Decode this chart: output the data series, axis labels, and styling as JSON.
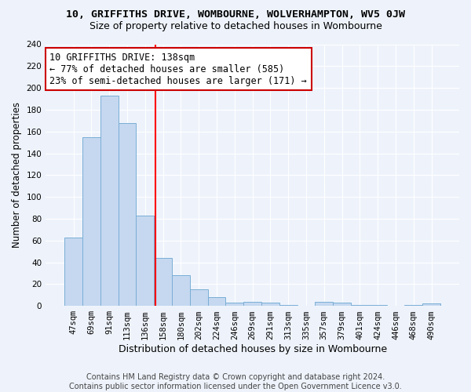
{
  "title1": "10, GRIFFITHS DRIVE, WOMBOURNE, WOLVERHAMPTON, WV5 0JW",
  "title2": "Size of property relative to detached houses in Wombourne",
  "xlabel": "Distribution of detached houses by size in Wombourne",
  "ylabel": "Number of detached properties",
  "categories": [
    "47sqm",
    "69sqm",
    "91sqm",
    "113sqm",
    "136sqm",
    "158sqm",
    "180sqm",
    "202sqm",
    "224sqm",
    "246sqm",
    "269sqm",
    "291sqm",
    "313sqm",
    "335sqm",
    "357sqm",
    "379sqm",
    "401sqm",
    "424sqm",
    "446sqm",
    "468sqm",
    "490sqm"
  ],
  "values": [
    63,
    155,
    193,
    168,
    83,
    44,
    28,
    15,
    8,
    3,
    4,
    3,
    1,
    0,
    4,
    3,
    1,
    1,
    0,
    1,
    2
  ],
  "bar_color": "#c5d8f0",
  "bar_edge_color": "#7aaed6",
  "bg_color": "#eef3fb",
  "grid_color": "#ffffff",
  "red_line_x": 4.6,
  "annotation_line1": "10 GRIFFITHS DRIVE: 138sqm",
  "annotation_line2": "← 77% of detached houses are smaller (585)",
  "annotation_line3": "23% of semi-detached houses are larger (171) →",
  "annotation_box_color": "#ffffff",
  "annotation_box_edge": "#cc0000",
  "ylim": [
    0,
    240
  ],
  "yticks": [
    0,
    20,
    40,
    60,
    80,
    100,
    120,
    140,
    160,
    180,
    200,
    220,
    240
  ],
  "footer": "Contains HM Land Registry data © Crown copyright and database right 2024.\nContains public sector information licensed under the Open Government Licence v3.0.",
  "title1_fontsize": 9.5,
  "title2_fontsize": 9,
  "xlabel_fontsize": 9,
  "ylabel_fontsize": 8.5,
  "tick_fontsize": 7.5,
  "annotation_fontsize": 8.5
}
